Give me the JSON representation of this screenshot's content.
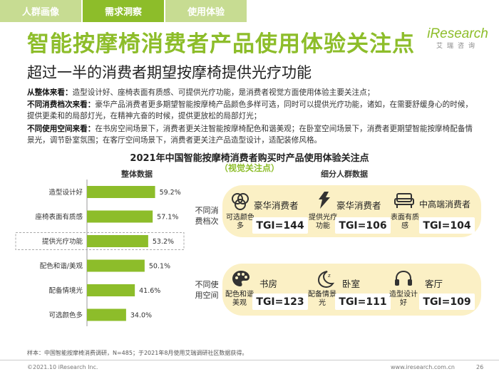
{
  "tabs": [
    "人群画像",
    "需求洞察",
    "使用体验"
  ],
  "title": "智能按摩椅消费者产品使用体验关注点",
  "logo": {
    "main": "iResearch",
    "sub": "艾瑞咨询"
  },
  "subtitle": "超过一半的消费者期望按摩椅提供光疗功能",
  "paragraphs": [
    {
      "label": "从整体来看：",
      "text": "造型设计好、座椅表面有质感、可提供光疗功能，是消费者视觉方面使用体验主要关注点；"
    },
    {
      "label": "不同消费档次来看：",
      "text": "豪华产品消费者更多期望智能按摩椅产品颜色多样可选，同时可以提供光疗功能，诸如，在需要舒缓身心的时候，提供更柔和的局部灯光，在精神亢奋的时候，提供更放松的局部灯光；"
    },
    {
      "label": "不同使用空间来看：",
      "text": "在书房空间场景下，消费者更关注智能按摩椅配色和谐美观；在卧室空间场景下，消费者更期望智能按摩椅配备情景光，调节卧室氛围；在客厅空间场景下，消费者更关注产品造型设计，适配装修风格。"
    }
  ],
  "chart_title": "2021年中国智能按摩椅消费者购买时产品使用体验关注点",
  "chart_subtitle": "（视觉关注点）",
  "overall_label": "整体数据",
  "segment_label": "细分人群数据",
  "chart_data": {
    "type": "bar",
    "orientation": "horizontal",
    "title": "整体数据",
    "categories": [
      "造型设计好",
      "座椅表面有质感",
      "提供光疗功能",
      "配色和谐/美观",
      "配备情境光",
      "可选颜色多"
    ],
    "values": [
      59.2,
      57.1,
      53.2,
      50.1,
      41.6,
      34.0
    ],
    "value_labels": [
      "59.2%",
      "57.1%",
      "53.2%",
      "50.1%",
      "41.6%",
      "34.0%"
    ],
    "xlim": [
      0,
      70
    ],
    "highlight_category": "提供光疗功能",
    "bar_color": "#8dbd2a"
  },
  "segments": [
    {
      "label": "不同消费档次",
      "items": [
        {
          "icon": "palette-bubbles-icon",
          "caption": "可选颜色多",
          "name": "豪华消费者",
          "tgi": "TGI=144"
        },
        {
          "icon": "light-therapy-icon",
          "caption": "提供光疗功能",
          "name": "豪华消费者",
          "tgi": "TGI=106"
        },
        {
          "icon": "sofa-icon",
          "caption": "表面有质感",
          "name": "中高端消费者",
          "tgi": "TGI=104"
        }
      ]
    },
    {
      "label": "不同使用空间",
      "items": [
        {
          "icon": "paint-palette-icon",
          "caption": "配色和谐美观",
          "name": "书房",
          "tgi": "TGI=123"
        },
        {
          "icon": "moon-icon",
          "caption": "配备情景光",
          "name": "卧室",
          "tgi": "TGI=111"
        },
        {
          "icon": "headphones-icon",
          "caption": "造型设计好",
          "name": "客厅",
          "tgi": "TGI=109"
        }
      ]
    }
  ],
  "footnote": "样本：中国智能按摩椅消费调研，N=485；于2021年8月使用艾瑞调研社区数据获得。",
  "footer": {
    "copyright": "©2021.10 iResearch Inc.",
    "url": "www.iresearch.com.cn",
    "page": "26"
  },
  "colors": {
    "accent": "#8dbd2a",
    "panel": "#fbf0c5"
  }
}
